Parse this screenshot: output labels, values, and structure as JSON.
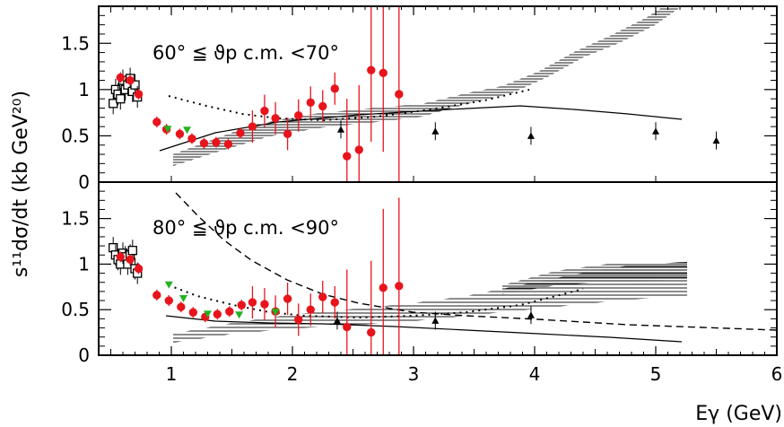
{
  "chart_data": {
    "type": "scatter",
    "xlabel": "Eγ (GeV)",
    "ylabel": "s¹¹dσ/dt (kb GeV²⁰)",
    "xlim": [
      0.4,
      6.0
    ],
    "ylim": [
      0,
      1.9
    ],
    "x_ticks": [
      "1",
      "2",
      "3",
      "4",
      "5",
      "6"
    ],
    "y_ticks": [
      "0",
      "0.5",
      "1",
      "1.5"
    ],
    "panels": [
      {
        "label": "60° ≦ ϑp c.m. <70°",
        "series": [
          {
            "marker": "open-square",
            "color": "#000000",
            "points": [
              {
                "x": 0.52,
                "y": 0.85
              },
              {
                "x": 0.54,
                "y": 1.0
              },
              {
                "x": 0.56,
                "y": 0.95
              },
              {
                "x": 0.58,
                "y": 0.9
              },
              {
                "x": 0.6,
                "y": 1.1
              },
              {
                "x": 0.62,
                "y": 1.0
              },
              {
                "x": 0.64,
                "y": 1.05
              },
              {
                "x": 0.66,
                "y": 1.12
              },
              {
                "x": 0.68,
                "y": 0.98
              },
              {
                "x": 0.7,
                "y": 1.05
              },
              {
                "x": 0.72,
                "y": 0.92
              }
            ]
          },
          {
            "marker": "red-circle",
            "color": "#e8141c",
            "points": [
              {
                "x": 0.58,
                "y": 1.13
              },
              {
                "x": 0.66,
                "y": 1.1
              },
              {
                "x": 0.73,
                "y": 0.95
              },
              {
                "x": 0.88,
                "y": 0.65
              },
              {
                "x": 0.96,
                "y": 0.57
              },
              {
                "x": 1.07,
                "y": 0.52
              },
              {
                "x": 1.17,
                "y": 0.47
              },
              {
                "x": 1.27,
                "y": 0.42
              },
              {
                "x": 1.37,
                "y": 0.43
              },
              {
                "x": 1.47,
                "y": 0.41
              },
              {
                "x": 1.57,
                "y": 0.53
              },
              {
                "x": 1.67,
                "y": 0.6
              },
              {
                "x": 1.77,
                "y": 0.77
              },
              {
                "x": 1.86,
                "y": 0.69
              },
              {
                "x": 1.96,
                "y": 0.52
              },
              {
                "x": 2.05,
                "y": 0.72
              },
              {
                "x": 2.15,
                "y": 0.86
              },
              {
                "x": 2.25,
                "y": 0.82
              },
              {
                "x": 2.35,
                "y": 1.01
              },
              {
                "x": 2.45,
                "y": 0.28
              },
              {
                "x": 2.55,
                "y": 0.35
              },
              {
                "x": 2.65,
                "y": 1.21
              },
              {
                "x": 2.75,
                "y": 1.18
              },
              {
                "x": 2.88,
                "y": 0.95
              }
            ]
          },
          {
            "marker": "green-triangle-down",
            "color": "#22b322",
            "points": [
              {
                "x": 0.97,
                "y": 0.57
              },
              {
                "x": 1.13,
                "y": 0.56
              }
            ]
          },
          {
            "marker": "black-triangle-up",
            "color": "#000000",
            "points": [
              {
                "x": 2.4,
                "y": 0.57
              },
              {
                "x": 3.18,
                "y": 0.55
              },
              {
                "x": 3.97,
                "y": 0.5
              },
              {
                "x": 5.0,
                "y": 0.55
              },
              {
                "x": 5.5,
                "y": 0.45
              }
            ]
          }
        ]
      },
      {
        "label": "80° ≦ ϑp c.m. <90°",
        "series": [
          {
            "marker": "open-square",
            "color": "#000000",
            "points": [
              {
                "x": 0.52,
                "y": 1.18
              },
              {
                "x": 0.54,
                "y": 1.1
              },
              {
                "x": 0.56,
                "y": 1.05
              },
              {
                "x": 0.58,
                "y": 1.0
              },
              {
                "x": 0.6,
                "y": 1.12
              },
              {
                "x": 0.62,
                "y": 1.08
              },
              {
                "x": 0.64,
                "y": 1.0
              },
              {
                "x": 0.66,
                "y": 1.1
              },
              {
                "x": 0.68,
                "y": 1.15
              },
              {
                "x": 0.7,
                "y": 0.95
              },
              {
                "x": 0.72,
                "y": 0.9
              }
            ]
          },
          {
            "marker": "red-circle",
            "color": "#e8141c",
            "points": [
              {
                "x": 0.58,
                "y": 1.08
              },
              {
                "x": 0.66,
                "y": 1.05
              },
              {
                "x": 0.73,
                "y": 0.95
              },
              {
                "x": 0.88,
                "y": 0.66
              },
              {
                "x": 0.98,
                "y": 0.6
              },
              {
                "x": 1.08,
                "y": 0.53
              },
              {
                "x": 1.18,
                "y": 0.47
              },
              {
                "x": 1.28,
                "y": 0.42
              },
              {
                "x": 1.38,
                "y": 0.45
              },
              {
                "x": 1.48,
                "y": 0.48
              },
              {
                "x": 1.58,
                "y": 0.55
              },
              {
                "x": 1.67,
                "y": 0.58
              },
              {
                "x": 1.77,
                "y": 0.56
              },
              {
                "x": 1.86,
                "y": 0.48
              },
              {
                "x": 1.96,
                "y": 0.62
              },
              {
                "x": 2.05,
                "y": 0.39
              },
              {
                "x": 2.15,
                "y": 0.5
              },
              {
                "x": 2.25,
                "y": 0.64
              },
              {
                "x": 2.35,
                "y": 0.58
              },
              {
                "x": 2.45,
                "y": 0.31
              },
              {
                "x": 2.65,
                "y": 0.25
              },
              {
                "x": 2.75,
                "y": 0.74
              },
              {
                "x": 2.88,
                "y": 0.76
              }
            ]
          },
          {
            "marker": "green-triangle-down",
            "color": "#22b322",
            "points": [
              {
                "x": 0.98,
                "y": 0.77
              },
              {
                "x": 1.1,
                "y": 0.62
              },
              {
                "x": 1.3,
                "y": 0.45
              },
              {
                "x": 1.56,
                "y": 0.44
              },
              {
                "x": 1.86,
                "y": 0.47
              }
            ]
          },
          {
            "marker": "black-triangle-up",
            "color": "#000000",
            "points": [
              {
                "x": 2.37,
                "y": 0.38
              },
              {
                "x": 3.18,
                "y": 0.38
              },
              {
                "x": 3.97,
                "y": 0.44
              }
            ]
          }
        ]
      }
    ]
  }
}
